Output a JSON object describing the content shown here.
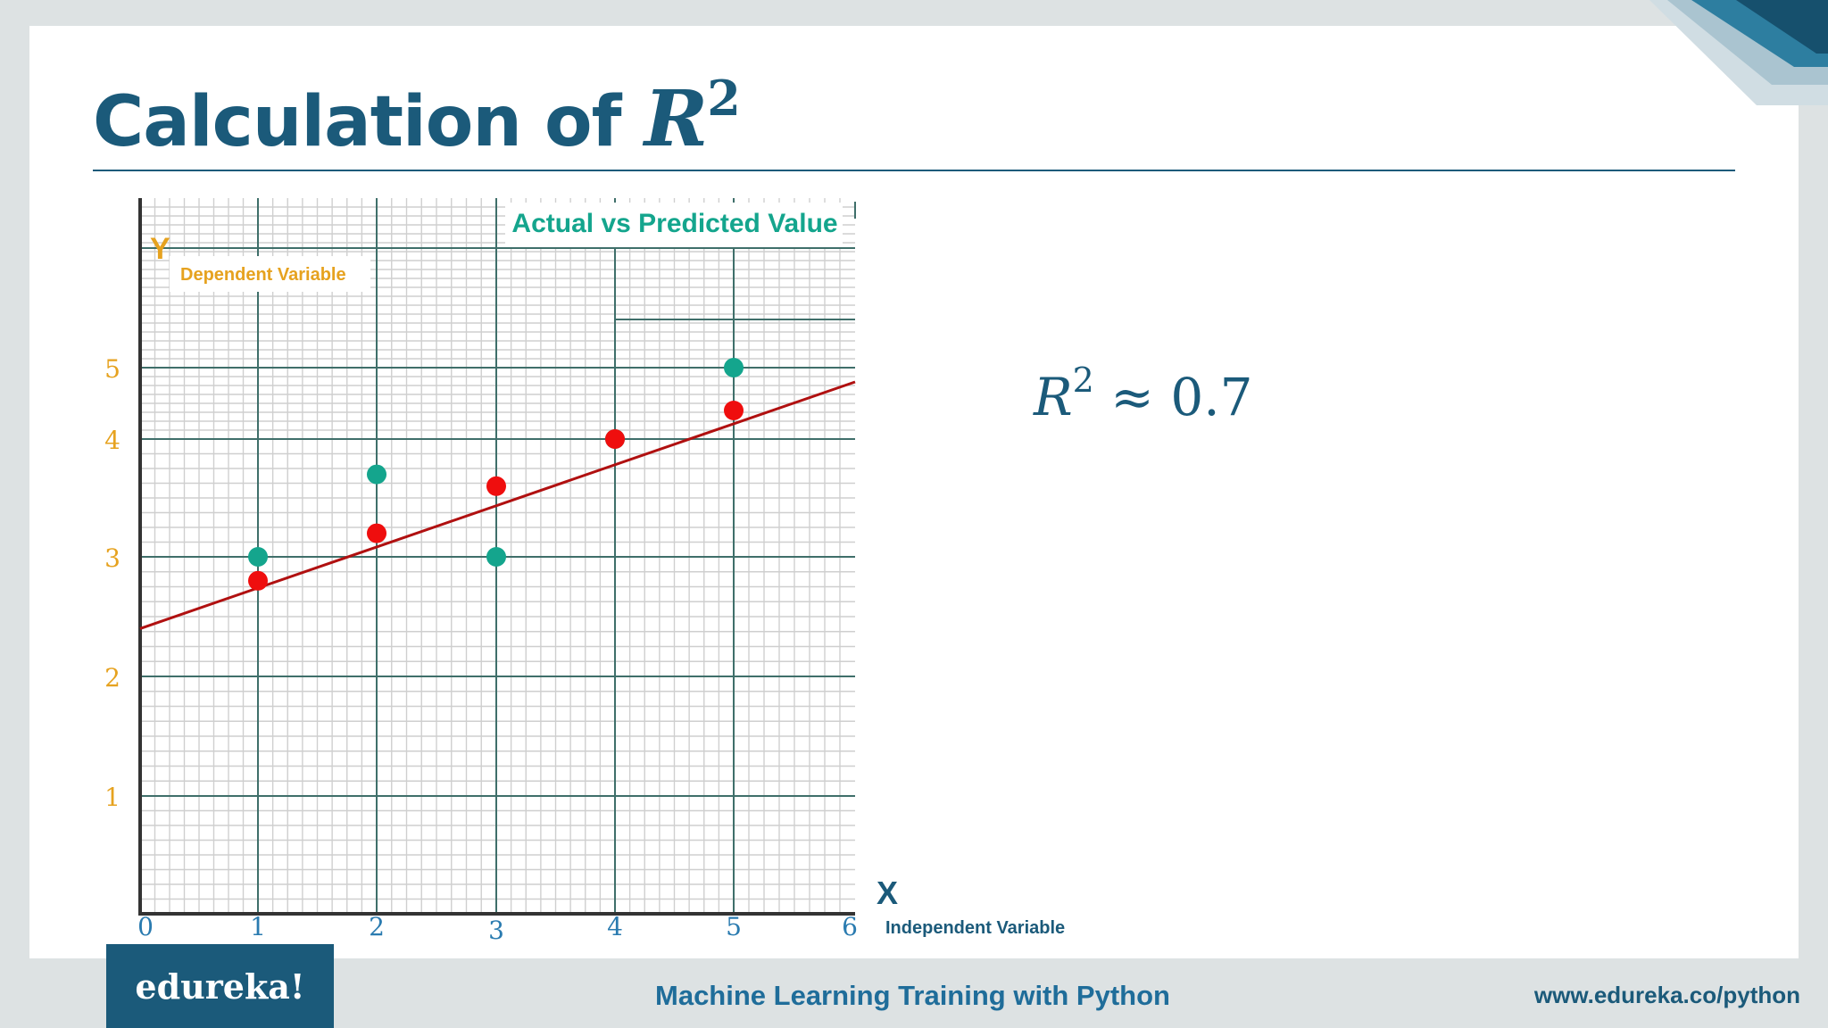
{
  "slide": {
    "title_prefix": "Calculation of",
    "title_var": "R",
    "title_exp": "2",
    "r2_var": "R",
    "r2_exp": "2",
    "r2_rest": " ≈ 0.7",
    "footer_title": "Machine Learning Training with Python",
    "footer_url": "www.edureka.co/python",
    "logo_text": "edureka!"
  },
  "colors": {
    "brand": "#1b5a7a",
    "actual": "#14a58d",
    "predicted": "#ef0e0e",
    "line": "#b01010",
    "axis_label": "#e6a21f",
    "tick_x": "#2a7bb0"
  },
  "chart_data": {
    "type": "scatter",
    "title": "Actual vs Predicted Value",
    "y_letter": "Y",
    "ylabel": "Dependent Variable",
    "x_letter": "X",
    "xlabel": "Independent Variable",
    "xlim": [
      0,
      6
    ],
    "ylim": [
      0,
      6
    ],
    "x_ticks": [
      0,
      1,
      2,
      3,
      4,
      5,
      6
    ],
    "y_ticks": [
      1,
      2,
      3,
      4,
      5
    ],
    "grid": true,
    "series": [
      {
        "kind": "actual",
        "points": [
          [
            1,
            3
          ],
          [
            2,
            3.7
          ],
          [
            3,
            3
          ],
          [
            4,
            4
          ],
          [
            5,
            5
          ]
        ]
      },
      {
        "kind": "predicted",
        "points": [
          [
            1,
            2.8
          ],
          [
            2,
            3.2
          ],
          [
            3,
            3.6
          ],
          [
            4,
            4
          ],
          [
            5,
            4.4
          ]
        ]
      }
    ],
    "regression_line": {
      "slope": 0.4,
      "intercept": 2.4
    }
  }
}
